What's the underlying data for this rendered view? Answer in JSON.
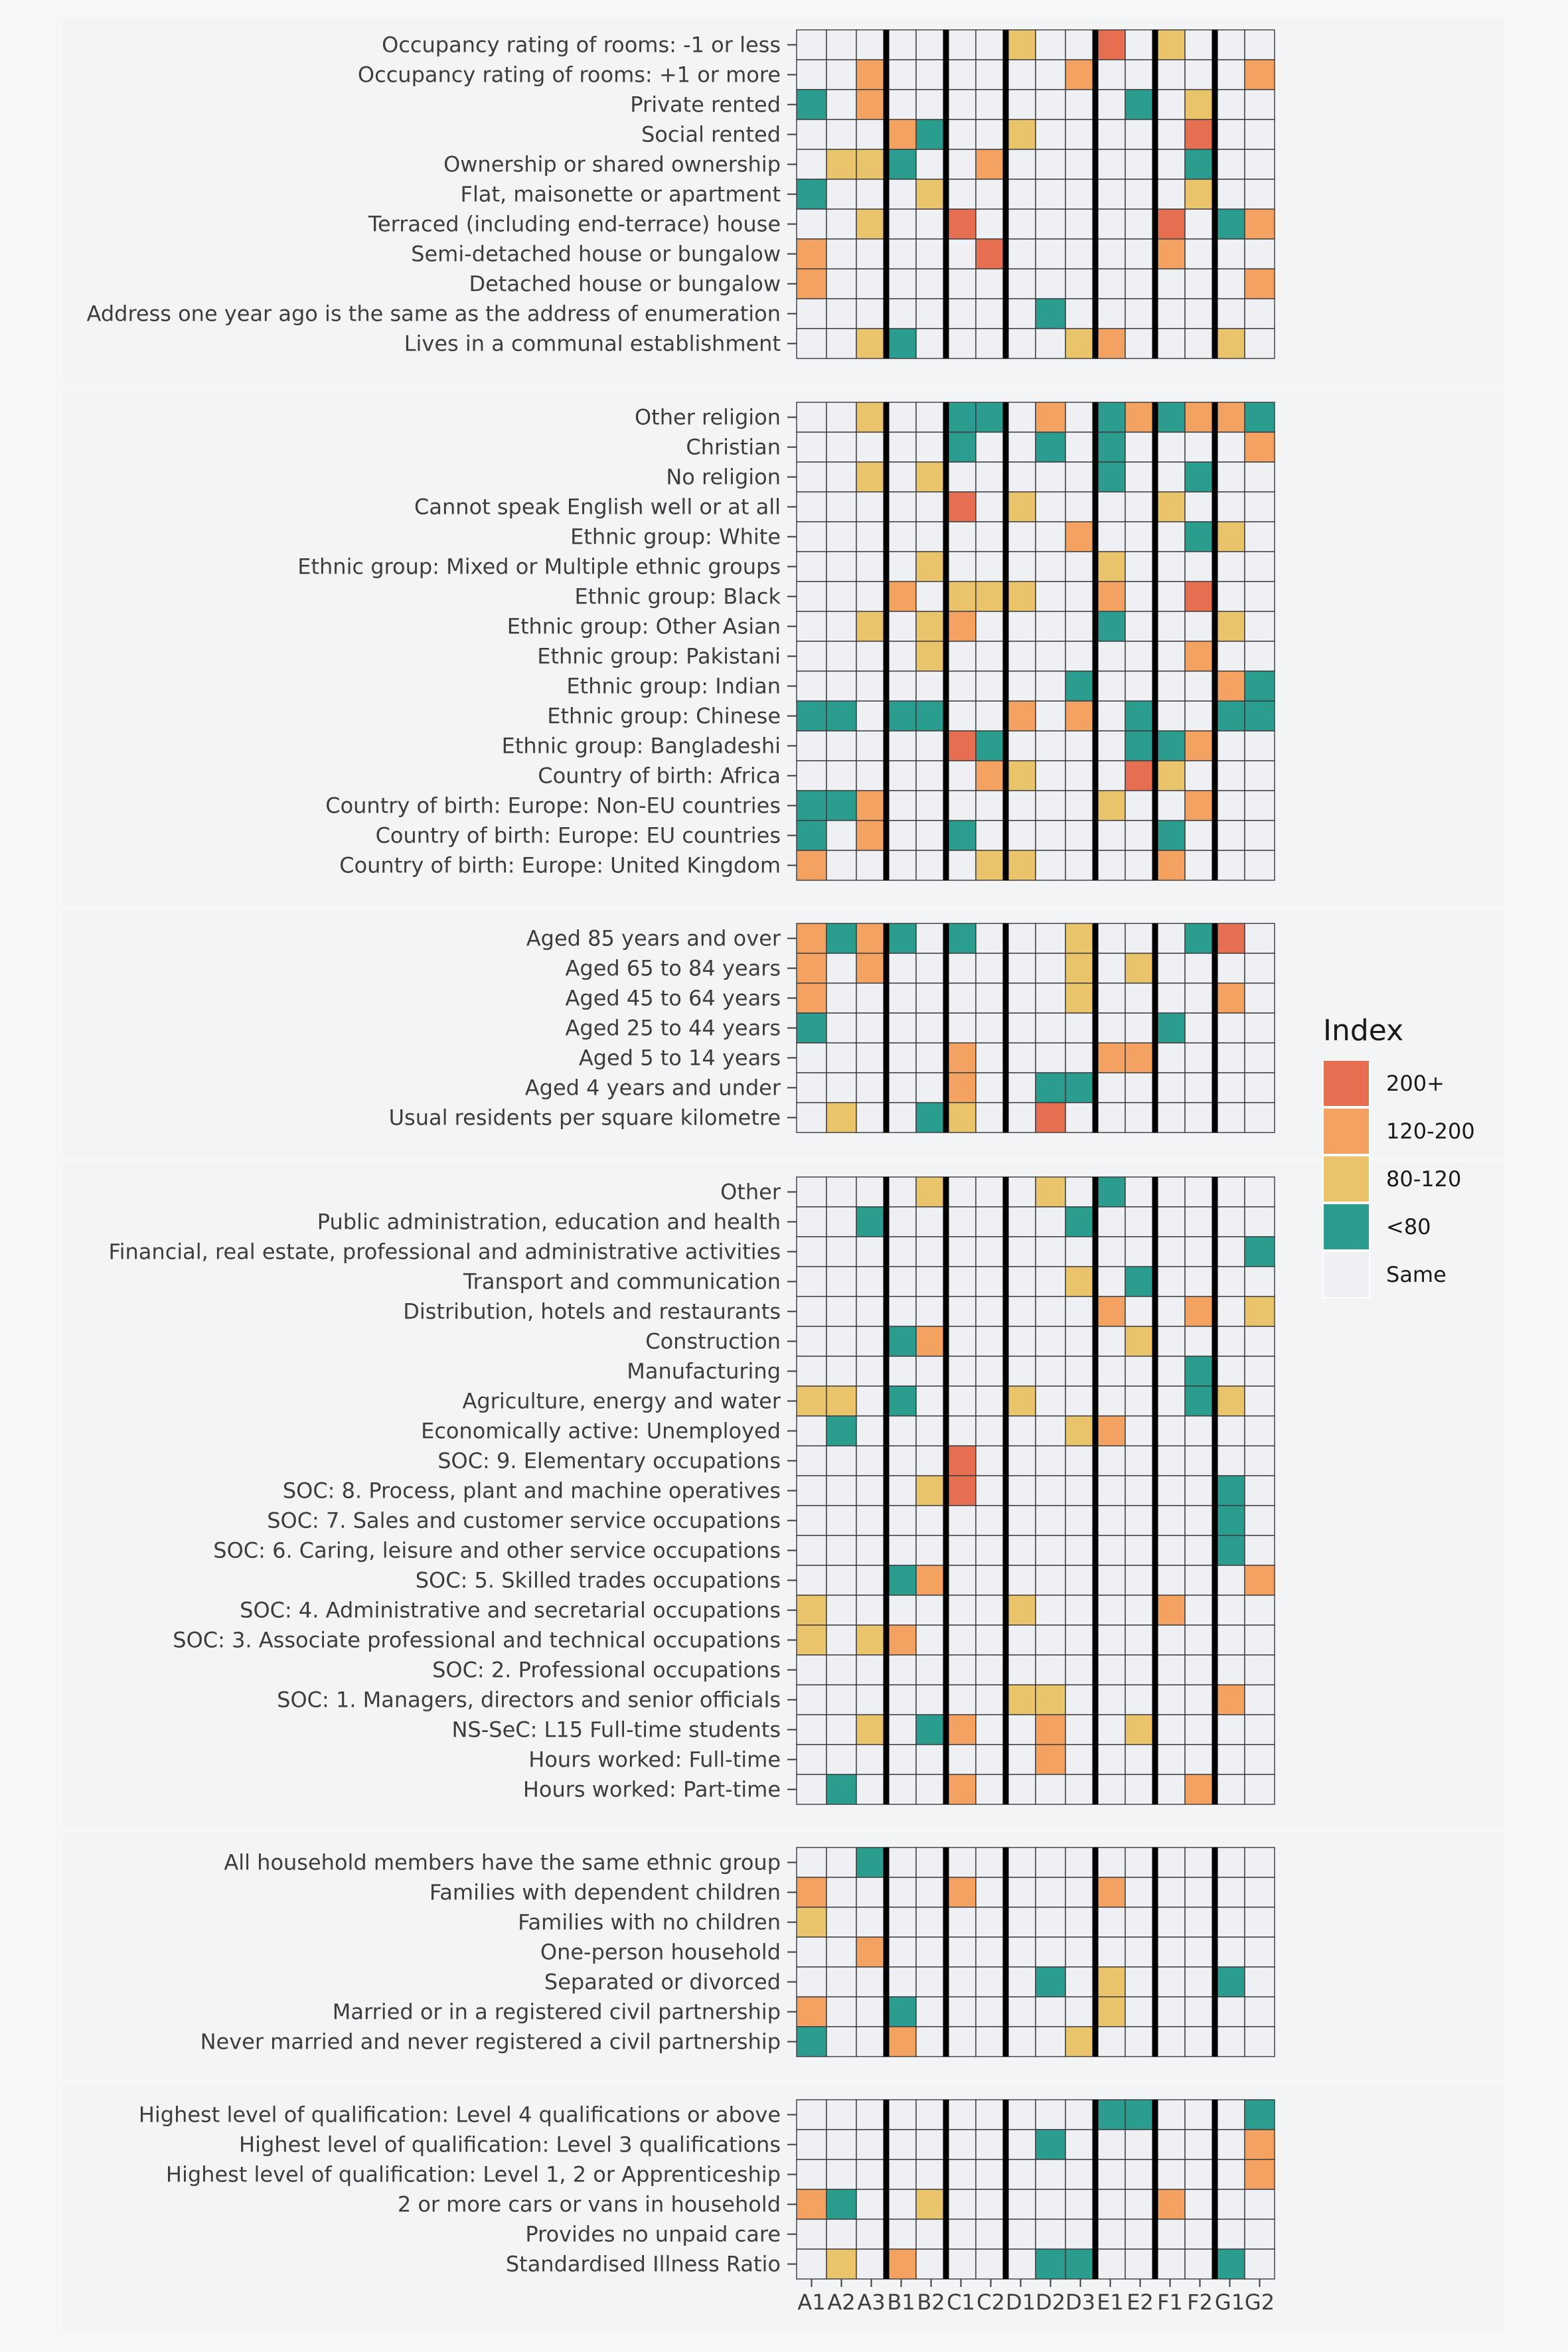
{
  "chart_data": {
    "type": "heatmap",
    "columns": [
      "A1",
      "A2",
      "A3",
      "B1",
      "B2",
      "C1",
      "C2",
      "D1",
      "D2",
      "D3",
      "E1",
      "E2",
      "F1",
      "F2",
      "G1",
      "G2"
    ],
    "group_dividers_after": [
      "A3",
      "B2",
      "C2",
      "D3",
      "E2",
      "F2"
    ],
    "legend": {
      "title": "Index",
      "items": [
        {
          "label": "200+",
          "color": "#e76f51"
        },
        {
          "label": "120-200",
          "color": "#f4a261"
        },
        {
          "label": "80-120",
          "color": "#e9c46a"
        },
        {
          "label": "<80",
          "color": "#2a9d8f"
        },
        {
          "label": "Same",
          "color": "#eef0f3"
        }
      ]
    },
    "panels": [
      {
        "rows": [
          {
            "label": "Occupancy rating of rooms: -1 or less",
            "cells": {
              "D1": "80-120",
              "E1": "200+",
              "F1": "80-120"
            }
          },
          {
            "label": "Occupancy rating of rooms: +1 or more",
            "cells": {
              "A3": "120-200",
              "D3": "120-200",
              "G2": "120-200"
            }
          },
          {
            "label": "Private rented",
            "cells": {
              "A1": "<80",
              "A3": "120-200",
              "E2": "<80",
              "F2": "80-120"
            }
          },
          {
            "label": "Social rented",
            "cells": {
              "B1": "120-200",
              "B2": "<80",
              "D1": "80-120",
              "F2": "200+"
            }
          },
          {
            "label": "Ownership or shared ownership",
            "cells": {
              "A2": "80-120",
              "A3": "80-120",
              "B1": "<80",
              "C2": "120-200",
              "F2": "<80"
            }
          },
          {
            "label": "Flat, maisonette or apartment",
            "cells": {
              "A1": "<80",
              "B2": "80-120",
              "F2": "80-120"
            }
          },
          {
            "label": "Terraced (including end-terrace) house",
            "cells": {
              "A3": "80-120",
              "C1": "200+",
              "F1": "200+",
              "G1": "<80",
              "G2": "120-200"
            }
          },
          {
            "label": "Semi-detached house or bungalow",
            "cells": {
              "A1": "120-200",
              "C2": "200+",
              "F1": "120-200"
            }
          },
          {
            "label": "Detached house or bungalow",
            "cells": {
              "A1": "120-200",
              "G2": "120-200"
            }
          },
          {
            "label": "Address one year ago is the same as the address of enumeration",
            "cells": {
              "D2": "<80"
            }
          },
          {
            "label": "Lives in a communal establishment",
            "cells": {
              "A3": "80-120",
              "B1": "<80",
              "D3": "80-120",
              "E1": "120-200",
              "G1": "80-120"
            }
          }
        ]
      },
      {
        "rows": [
          {
            "label": "Other religion",
            "cells": {
              "A3": "80-120",
              "C1": "<80",
              "C2": "<80",
              "D2": "120-200",
              "E1": "<80",
              "E2": "120-200",
              "F1": "<80",
              "F2": "120-200",
              "G1": "120-200",
              "G2": "<80"
            }
          },
          {
            "label": "Christian",
            "cells": {
              "C1": "<80",
              "D2": "<80",
              "E1": "<80",
              "G2": "120-200"
            }
          },
          {
            "label": "No religion",
            "cells": {
              "A3": "80-120",
              "B2": "80-120",
              "E1": "<80",
              "F2": "<80"
            }
          },
          {
            "label": "Cannot speak English well or at all",
            "cells": {
              "C1": "200+",
              "D1": "80-120",
              "F1": "80-120"
            }
          },
          {
            "label": "Ethnic group: White",
            "cells": {
              "D3": "120-200",
              "F2": "<80",
              "G1": "80-120"
            }
          },
          {
            "label": "Ethnic group: Mixed or Multiple ethnic groups",
            "cells": {
              "B2": "80-120",
              "E1": "80-120"
            }
          },
          {
            "label": "Ethnic group: Black",
            "cells": {
              "B1": "120-200",
              "C1": "80-120",
              "C2": "80-120",
              "D1": "80-120",
              "E1": "120-200",
              "F2": "200+"
            }
          },
          {
            "label": "Ethnic group: Other Asian",
            "cells": {
              "A3": "80-120",
              "B2": "80-120",
              "C1": "120-200",
              "E1": "<80",
              "G1": "80-120"
            }
          },
          {
            "label": "Ethnic group: Pakistani",
            "cells": {
              "B2": "80-120",
              "F2": "120-200"
            }
          },
          {
            "label": "Ethnic group: Indian",
            "cells": {
              "D3": "<80",
              "G1": "120-200",
              "G2": "<80"
            }
          },
          {
            "label": "Ethnic group: Chinese",
            "cells": {
              "A1": "<80",
              "A2": "<80",
              "B1": "<80",
              "B2": "<80",
              "D1": "120-200",
              "D3": "120-200",
              "E2": "<80",
              "G1": "<80",
              "G2": "<80"
            }
          },
          {
            "label": "Ethnic group: Bangladeshi",
            "cells": {
              "C1": "200+",
              "C2": "<80",
              "E2": "<80",
              "F1": "<80",
              "F2": "120-200"
            }
          },
          {
            "label": "Country of birth: Africa",
            "cells": {
              "C2": "120-200",
              "D1": "80-120",
              "E2": "200+",
              "F1": "80-120"
            }
          },
          {
            "label": "Country of birth: Europe: Non-EU countries",
            "cells": {
              "A1": "<80",
              "A2": "<80",
              "A3": "120-200",
              "E1": "80-120",
              "F2": "120-200"
            }
          },
          {
            "label": "Country of birth: Europe: EU countries",
            "cells": {
              "A1": "<80",
              "A3": "120-200",
              "C1": "<80",
              "F1": "<80"
            }
          },
          {
            "label": "Country of birth: Europe: United Kingdom",
            "cells": {
              "A1": "120-200",
              "C2": "80-120",
              "D1": "80-120",
              "F1": "120-200"
            }
          }
        ]
      },
      {
        "rows": [
          {
            "label": "Aged 85 years and over",
            "cells": {
              "A1": "120-200",
              "A2": "<80",
              "A3": "120-200",
              "B1": "<80",
              "C1": "<80",
              "D3": "80-120",
              "F2": "<80",
              "G1": "200+"
            }
          },
          {
            "label": "Aged 65 to 84 years",
            "cells": {
              "A1": "120-200",
              "A3": "120-200",
              "D3": "80-120",
              "E2": "80-120"
            }
          },
          {
            "label": "Aged 45 to 64 years",
            "cells": {
              "A1": "120-200",
              "D3": "80-120",
              "G1": "120-200"
            }
          },
          {
            "label": "Aged 25 to 44 years",
            "cells": {
              "A1": "<80",
              "F1": "<80"
            }
          },
          {
            "label": "Aged 5 to 14 years",
            "cells": {
              "C1": "120-200",
              "E1": "120-200",
              "E2": "120-200"
            }
          },
          {
            "label": "Aged 4 years and under",
            "cells": {
              "C1": "120-200",
              "D2": "<80",
              "D3": "<80"
            }
          },
          {
            "label": "Usual residents per square kilometre",
            "cells": {
              "A2": "80-120",
              "B2": "<80",
              "C1": "80-120",
              "D2": "200+"
            }
          }
        ]
      },
      {
        "rows": [
          {
            "label": "Other",
            "cells": {
              "B2": "80-120",
              "D2": "80-120",
              "E1": "<80"
            }
          },
          {
            "label": "Public administration, education and health",
            "cells": {
              "A3": "<80",
              "D3": "<80"
            }
          },
          {
            "label": "Financial, real estate, professional and administrative activities",
            "cells": {
              "G2": "<80"
            }
          },
          {
            "label": "Transport and communication",
            "cells": {
              "D3": "80-120",
              "E2": "<80"
            }
          },
          {
            "label": "Distribution, hotels and restaurants",
            "cells": {
              "E1": "120-200",
              "F2": "120-200",
              "G2": "80-120"
            }
          },
          {
            "label": "Construction",
            "cells": {
              "B1": "<80",
              "B2": "120-200",
              "E2": "80-120"
            }
          },
          {
            "label": "Manufacturing",
            "cells": {
              "F2": "<80"
            }
          },
          {
            "label": "Agriculture, energy and water",
            "cells": {
              "A1": "80-120",
              "A2": "80-120",
              "B1": "<80",
              "D1": "80-120",
              "F2": "<80",
              "G1": "80-120"
            }
          },
          {
            "label": "Economically active: Unemployed",
            "cells": {
              "A2": "<80",
              "D3": "80-120",
              "E1": "120-200"
            }
          },
          {
            "label": "SOC: 9. Elementary occupations",
            "cells": {
              "C1": "200+"
            }
          },
          {
            "label": "SOC: 8. Process, plant and machine operatives",
            "cells": {
              "B2": "80-120",
              "C1": "200+",
              "G1": "<80"
            }
          },
          {
            "label": "SOC: 7. Sales and customer service occupations",
            "cells": {
              "G1": "<80"
            }
          },
          {
            "label": "SOC: 6. Caring, leisure and other service occupations",
            "cells": {
              "G1": "<80"
            }
          },
          {
            "label": "SOC: 5. Skilled trades occupations",
            "cells": {
              "B1": "<80",
              "B2": "120-200",
              "G2": "120-200"
            }
          },
          {
            "label": "SOC: 4. Administrative and secretarial occupations",
            "cells": {
              "A1": "80-120",
              "D1": "80-120",
              "F1": "120-200"
            }
          },
          {
            "label": "SOC: 3. Associate professional and technical occupations",
            "cells": {
              "A1": "80-120",
              "A3": "80-120",
              "B1": "120-200"
            }
          },
          {
            "label": "SOC: 2. Professional occupations",
            "cells": {}
          },
          {
            "label": "SOC: 1. Managers, directors and senior officials",
            "cells": {
              "D1": "80-120",
              "D2": "80-120",
              "G1": "120-200"
            }
          },
          {
            "label": "NS-SeC: L15 Full-time students",
            "cells": {
              "A3": "80-120",
              "B2": "<80",
              "C1": "120-200",
              "D2": "120-200",
              "E2": "80-120"
            }
          },
          {
            "label": "Hours worked: Full-time",
            "cells": {
              "D2": "120-200"
            }
          },
          {
            "label": "Hours worked: Part-time",
            "cells": {
              "A2": "<80",
              "C1": "120-200",
              "F2": "120-200"
            }
          }
        ]
      },
      {
        "rows": [
          {
            "label": "All household members have the same ethnic group",
            "cells": {
              "A3": "<80"
            }
          },
          {
            "label": "Families with dependent children",
            "cells": {
              "A1": "120-200",
              "C1": "120-200",
              "E1": "120-200"
            }
          },
          {
            "label": "Families with no children",
            "cells": {
              "A1": "80-120"
            }
          },
          {
            "label": "One-person household",
            "cells": {
              "A3": "120-200"
            }
          },
          {
            "label": "Separated or divorced",
            "cells": {
              "D2": "<80",
              "E1": "80-120",
              "G1": "<80"
            }
          },
          {
            "label": "Married or in a registered civil partnership",
            "cells": {
              "A1": "120-200",
              "B1": "<80",
              "E1": "80-120"
            }
          },
          {
            "label": "Never married and never registered a civil partnership",
            "cells": {
              "A1": "<80",
              "B1": "120-200",
              "D3": "80-120"
            }
          }
        ]
      },
      {
        "rows": [
          {
            "label": "Highest level of qualification: Level 4 qualifications or above",
            "cells": {
              "E1": "<80",
              "E2": "<80",
              "G2": "<80"
            }
          },
          {
            "label": "Highest level of qualification: Level 3 qualifications",
            "cells": {
              "D2": "<80",
              "G2": "120-200"
            }
          },
          {
            "label": "Highest level of qualification: Level 1, 2 or Apprenticeship",
            "cells": {
              "G2": "120-200"
            }
          },
          {
            "label": "2 or more cars or vans in household",
            "cells": {
              "A1": "120-200",
              "A2": "<80",
              "B2": "80-120",
              "F1": "120-200"
            }
          },
          {
            "label": "Provides no unpaid care",
            "cells": {}
          },
          {
            "label": "Standardised Illness Ratio",
            "cells": {
              "A2": "80-120",
              "B1": "120-200",
              "D2": "<80",
              "D3": "<80",
              "G1": "<80"
            }
          }
        ]
      }
    ]
  }
}
